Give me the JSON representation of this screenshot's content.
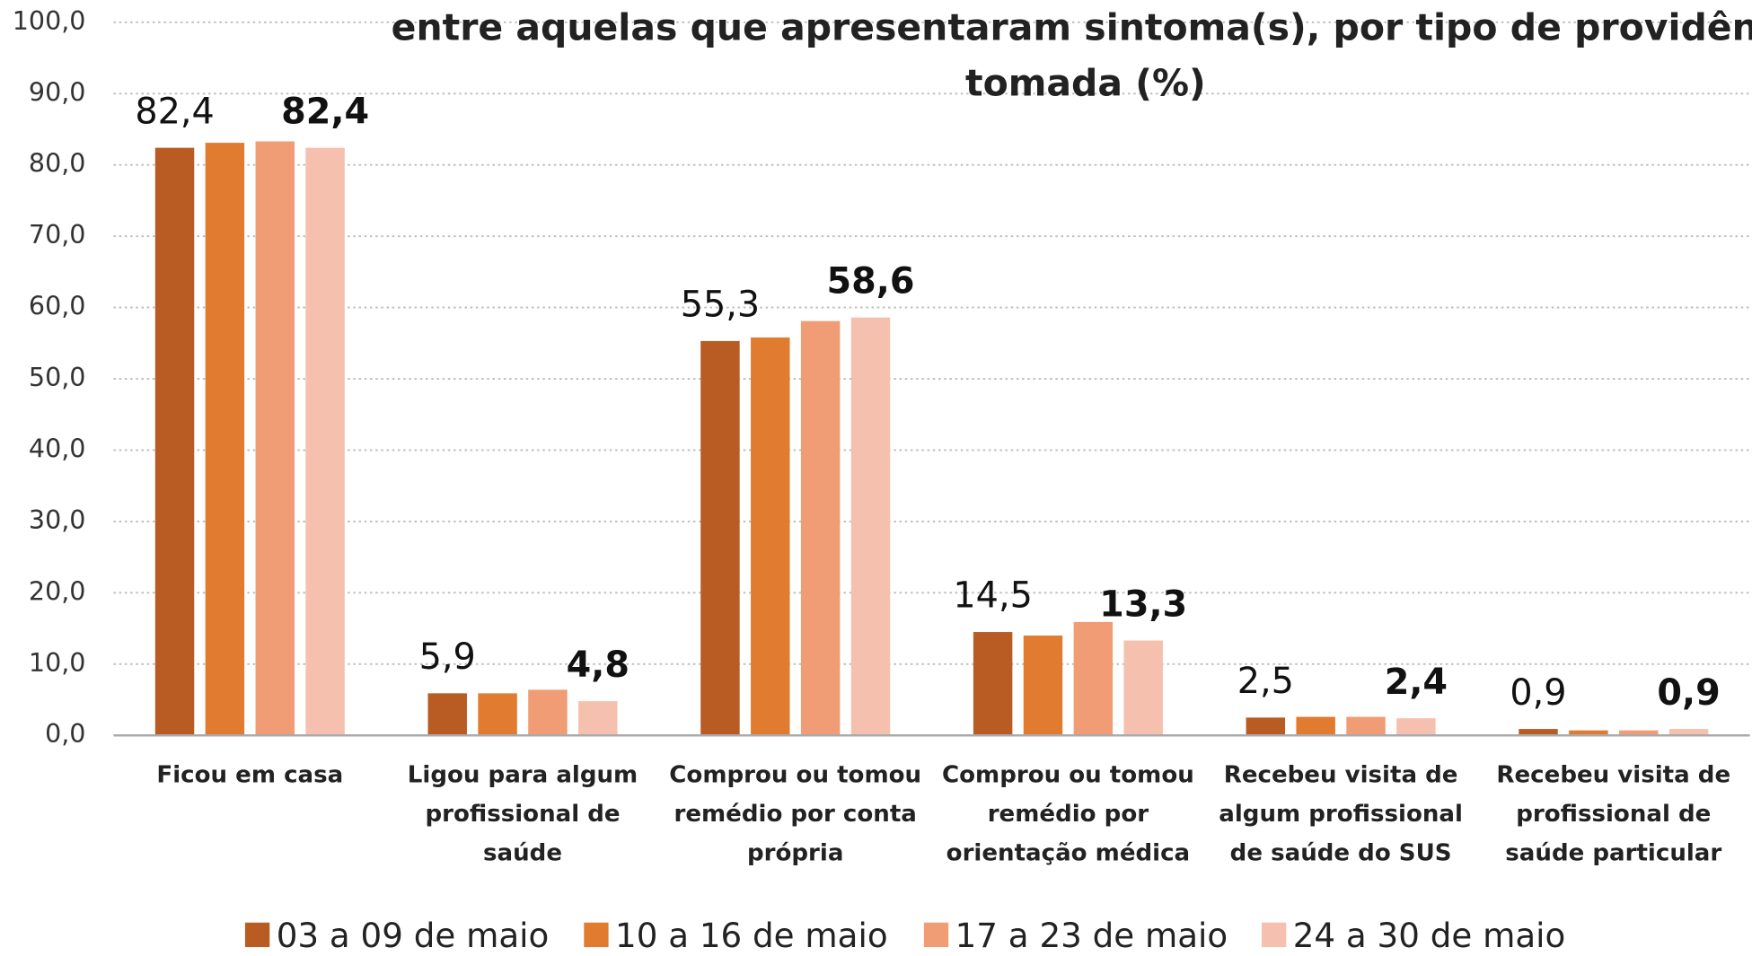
{
  "chart_data": {
    "type": "bar",
    "title": [
      "entre aquelas que apresentaram sintoma(s), por tipo de providênc",
      "tomada (%)"
    ],
    "categories": [
      "Ficou em casa",
      "Ligou para algum profissional de saúde",
      "Comprou ou tomou remédio por conta própria",
      "Comprou ou tomou remédio por orientação médica",
      "Recebeu visita de algum profissional de saúde do SUS",
      "Recebeu visita de profissional de saúde particular"
    ],
    "series": [
      {
        "name": "03 a 09 de maio",
        "color": "#b85c24",
        "values": [
          82.4,
          5.9,
          55.3,
          14.5,
          2.5,
          0.9
        ],
        "value_labels": [
          "82,4",
          "5,9",
          "55,3",
          "14,5",
          "2,5",
          "0,9"
        ]
      },
      {
        "name": "10 a 16 de maio",
        "color": "#e07b30",
        "values": [
          83.1,
          5.9,
          55.8,
          14.0,
          2.6,
          0.7
        ]
      },
      {
        "name": "17 a 23 de maio",
        "color": "#f09c74",
        "values": [
          83.3,
          6.4,
          58.1,
          15.9,
          2.6,
          0.7
        ]
      },
      {
        "name": "24 a 30 de maio",
        "color": "#f5c0ad",
        "values": [
          82.4,
          4.8,
          58.6,
          13.3,
          2.4,
          0.9
        ],
        "value_labels": [
          "82,4",
          "4,8",
          "58,6",
          "13,3",
          "2,4",
          "0,9"
        ]
      }
    ],
    "ylim": [
      0,
      100
    ],
    "yticks": [
      {
        "value": 0,
        "label": "0,0"
      },
      {
        "value": 10,
        "label": "10,0"
      },
      {
        "value": 20,
        "label": "20,0"
      },
      {
        "value": 30,
        "label": "30,0"
      },
      {
        "value": 40,
        "label": "40,0"
      },
      {
        "value": 50,
        "label": "50,0"
      },
      {
        "value": 60,
        "label": "60,0"
      },
      {
        "value": 70,
        "label": "70,0"
      },
      {
        "value": 80,
        "label": "80,0"
      },
      {
        "value": 90,
        "label": "90,0"
      },
      {
        "value": 100,
        "label": "100,0"
      }
    ],
    "grid": true
  }
}
